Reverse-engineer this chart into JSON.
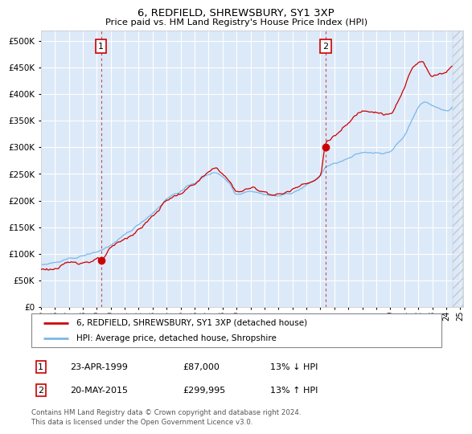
{
  "title": "6, REDFIELD, SHREWSBURY, SY1 3XP",
  "subtitle": "Price paid vs. HM Land Registry's House Price Index (HPI)",
  "xlim": [
    1995.0,
    2025.2
  ],
  "ylim": [
    0,
    520000
  ],
  "yticks": [
    0,
    50000,
    100000,
    150000,
    200000,
    250000,
    300000,
    350000,
    400000,
    450000,
    500000
  ],
  "background_color": "#dce9f8",
  "grid_color": "#ffffff",
  "hpi_color": "#7ab8e8",
  "price_color": "#cc0000",
  "marker1_year": 1999.31,
  "marker1_price": 87000,
  "marker2_year": 2015.38,
  "marker2_price": 299995,
  "legend_line1": "6, REDFIELD, SHREWSBURY, SY1 3XP (detached house)",
  "legend_line2": "HPI: Average price, detached house, Shropshire",
  "annotation1_date": "23-APR-1999",
  "annotation1_price": "£87,000",
  "annotation1_hpi": "13% ↓ HPI",
  "annotation2_date": "20-MAY-2015",
  "annotation2_price": "£299,995",
  "annotation2_hpi": "13% ↑ HPI",
  "footer": "Contains HM Land Registry data © Crown copyright and database right 2024.\nThis data is licensed under the Open Government Licence v3.0.",
  "hatch_start": 2024.5,
  "xtick_labels": [
    "95",
    "96",
    "97",
    "98",
    "99",
    "00",
    "01",
    "02",
    "03",
    "04",
    "05",
    "06",
    "07",
    "08",
    "09",
    "10",
    "11",
    "12",
    "13",
    "14",
    "15",
    "16",
    "17",
    "18",
    "19",
    "20",
    "21",
    "22",
    "23",
    "24",
    "25"
  ]
}
